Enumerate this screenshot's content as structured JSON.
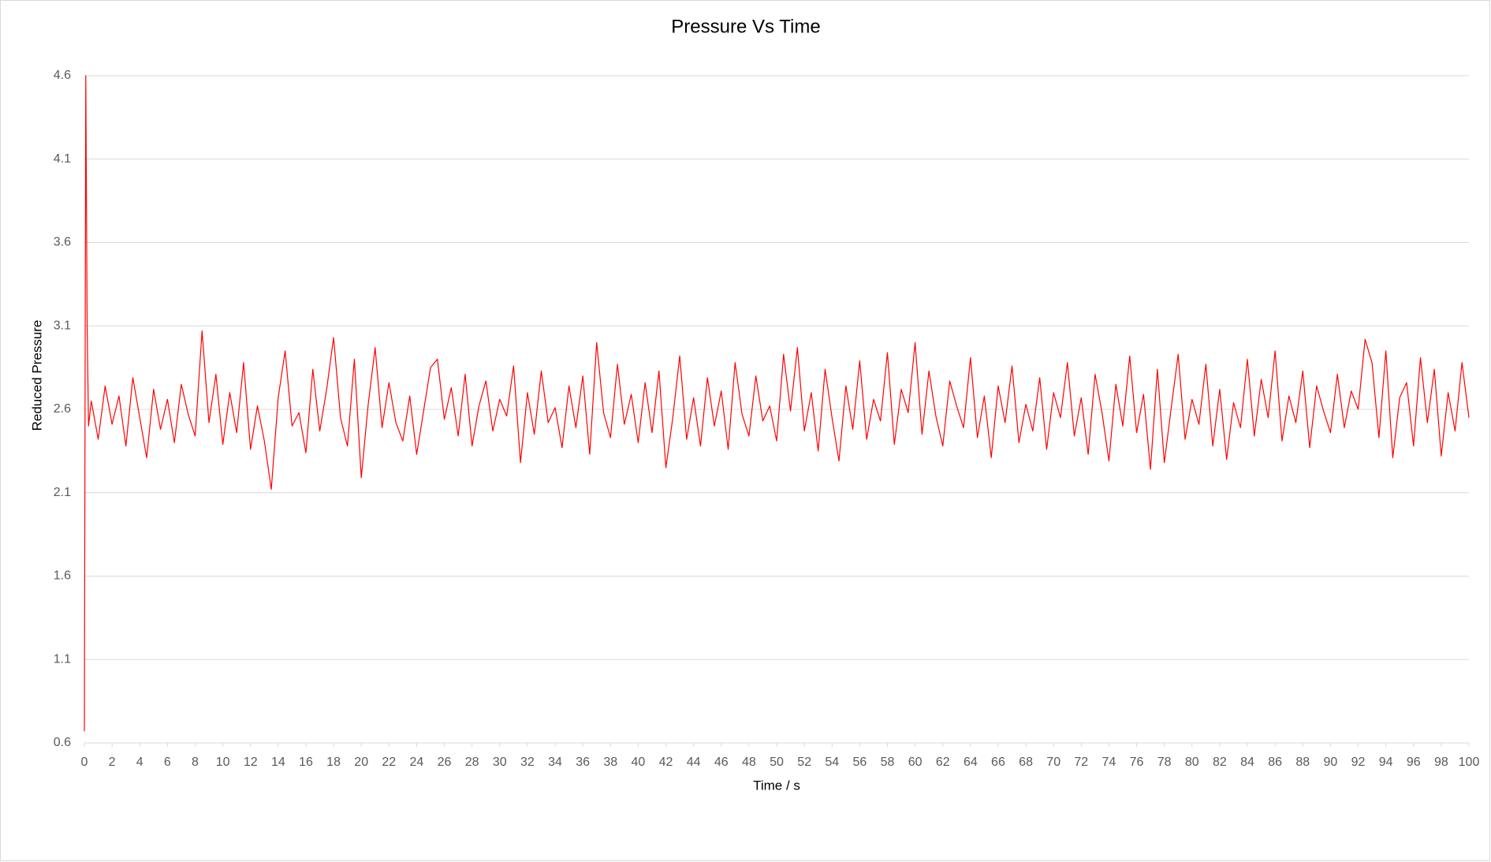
{
  "chart_data": {
    "type": "line",
    "title": "Pressure Vs Time",
    "x_label": "Time / s",
    "y_label": "Reduced Pressure",
    "color": "#ff0000",
    "grid": true,
    "xlim": [
      0,
      100
    ],
    "ylim": [
      0.6,
      4.6
    ],
    "xticks": [
      0,
      2,
      4,
      6,
      8,
      10,
      12,
      14,
      16,
      18,
      20,
      22,
      24,
      26,
      28,
      30,
      32,
      34,
      36,
      38,
      40,
      42,
      44,
      46,
      48,
      50,
      52,
      54,
      56,
      58,
      60,
      62,
      64,
      66,
      68,
      70,
      72,
      74,
      76,
      78,
      80,
      82,
      84,
      86,
      88,
      90,
      92,
      94,
      96,
      98,
      100
    ],
    "yticks": [
      0.6,
      1.1,
      1.6,
      2.1,
      2.6,
      3.1,
      3.6,
      4.1,
      4.6
    ],
    "x": [
      0,
      0.1,
      0.2,
      0.3,
      0.5,
      1,
      1.5,
      2,
      2.5,
      3,
      3.5,
      4,
      4.5,
      5,
      5.5,
      6,
      6.5,
      7,
      7.5,
      8,
      8.5,
      9,
      9.5,
      10,
      10.5,
      11,
      11.5,
      12,
      12.5,
      13,
      13.5,
      14,
      14.5,
      15,
      15.5,
      16,
      16.5,
      17,
      17.5,
      18,
      18.5,
      19,
      19.5,
      20,
      20.5,
      21,
      21.5,
      22,
      22.5,
      23,
      23.5,
      24,
      24.5,
      25,
      25.5,
      26,
      26.5,
      27,
      27.5,
      28,
      28.5,
      29,
      29.5,
      30,
      30.5,
      31,
      31.5,
      32,
      32.5,
      33,
      33.5,
      34,
      34.5,
      35,
      35.5,
      36,
      36.5,
      37,
      37.5,
      38,
      38.5,
      39,
      39.5,
      40,
      40.5,
      41,
      41.5,
      42,
      42.5,
      43,
      43.5,
      44,
      44.5,
      45,
      45.5,
      46,
      46.5,
      47,
      47.5,
      48,
      48.5,
      49,
      49.5,
      50,
      50.5,
      51,
      51.5,
      52,
      52.5,
      53,
      53.5,
      54,
      54.5,
      55,
      55.5,
      56,
      56.5,
      57,
      57.5,
      58,
      58.5,
      59,
      59.5,
      60,
      60.5,
      61,
      61.5,
      62,
      62.5,
      63,
      63.5,
      64,
      64.5,
      65,
      65.5,
      66,
      66.5,
      67,
      67.5,
      68,
      68.5,
      69,
      69.5,
      70,
      70.5,
      71,
      71.5,
      72,
      72.5,
      73,
      73.5,
      74,
      74.5,
      75,
      75.5,
      76,
      76.5,
      77,
      77.5,
      78,
      78.5,
      79,
      79.5,
      80,
      80.5,
      81,
      81.5,
      82,
      82.5,
      83,
      83.5,
      84,
      84.5,
      85,
      85.5,
      86,
      86.5,
      87,
      87.5,
      88,
      88.5,
      89,
      89.5,
      90,
      90.5,
      91,
      91.5,
      92,
      92.5,
      93,
      93.5,
      94,
      94.5,
      95,
      95.5,
      96,
      96.5,
      97,
      97.5,
      98,
      98.5,
      99,
      99.5,
      100
    ],
    "values": [
      0.67,
      4.6,
      3.1,
      2.5,
      2.65,
      2.42,
      2.74,
      2.51,
      2.68,
      2.38,
      2.79,
      2.55,
      2.31,
      2.72,
      2.48,
      2.66,
      2.4,
      2.75,
      2.57,
      2.44,
      3.07,
      2.52,
      2.81,
      2.39,
      2.7,
      2.46,
      2.88,
      2.36,
      2.62,
      2.41,
      2.12,
      2.67,
      2.95,
      2.5,
      2.58,
      2.34,
      2.84,
      2.47,
      2.72,
      3.03,
      2.55,
      2.38,
      2.9,
      2.19,
      2.63,
      2.97,
      2.49,
      2.76,
      2.52,
      2.41,
      2.68,
      2.33,
      2.59,
      2.85,
      2.9,
      2.54,
      2.73,
      2.44,
      2.81,
      2.38,
      2.62,
      2.77,
      2.47,
      2.66,
      2.56,
      2.86,
      2.28,
      2.7,
      2.45,
      2.83,
      2.52,
      2.61,
      2.37,
      2.74,
      2.49,
      2.8,
      2.33,
      3.0,
      2.58,
      2.43,
      2.87,
      2.51,
      2.69,
      2.4,
      2.76,
      2.46,
      2.83,
      2.25,
      2.55,
      2.92,
      2.42,
      2.67,
      2.38,
      2.79,
      2.5,
      2.71,
      2.36,
      2.88,
      2.57,
      2.44,
      2.8,
      2.53,
      2.62,
      2.41,
      2.93,
      2.59,
      2.97,
      2.47,
      2.7,
      2.35,
      2.84,
      2.55,
      2.29,
      2.74,
      2.48,
      2.89,
      2.42,
      2.66,
      2.53,
      2.94,
      2.39,
      2.72,
      2.58,
      3.0,
      2.45,
      2.83,
      2.56,
      2.38,
      2.77,
      2.62,
      2.49,
      2.91,
      2.43,
      2.68,
      2.31,
      2.74,
      2.52,
      2.86,
      2.4,
      2.63,
      2.47,
      2.79,
      2.36,
      2.7,
      2.55,
      2.88,
      2.44,
      2.67,
      2.33,
      2.81,
      2.58,
      2.29,
      2.75,
      2.5,
      2.92,
      2.46,
      2.69,
      2.24,
      2.84,
      2.28,
      2.61,
      2.93,
      2.42,
      2.66,
      2.51,
      2.87,
      2.38,
      2.72,
      2.3,
      2.64,
      2.49,
      2.9,
      2.44,
      2.78,
      2.55,
      2.95,
      2.41,
      2.68,
      2.52,
      2.83,
      2.37,
      2.74,
      2.59,
      2.46,
      2.81,
      2.49,
      2.71,
      2.6,
      3.02,
      2.88,
      2.43,
      2.95,
      2.31,
      2.67,
      2.76,
      2.38,
      2.91,
      2.52,
      2.84,
      2.32,
      2.7,
      2.47,
      2.88,
      2.55
    ]
  }
}
